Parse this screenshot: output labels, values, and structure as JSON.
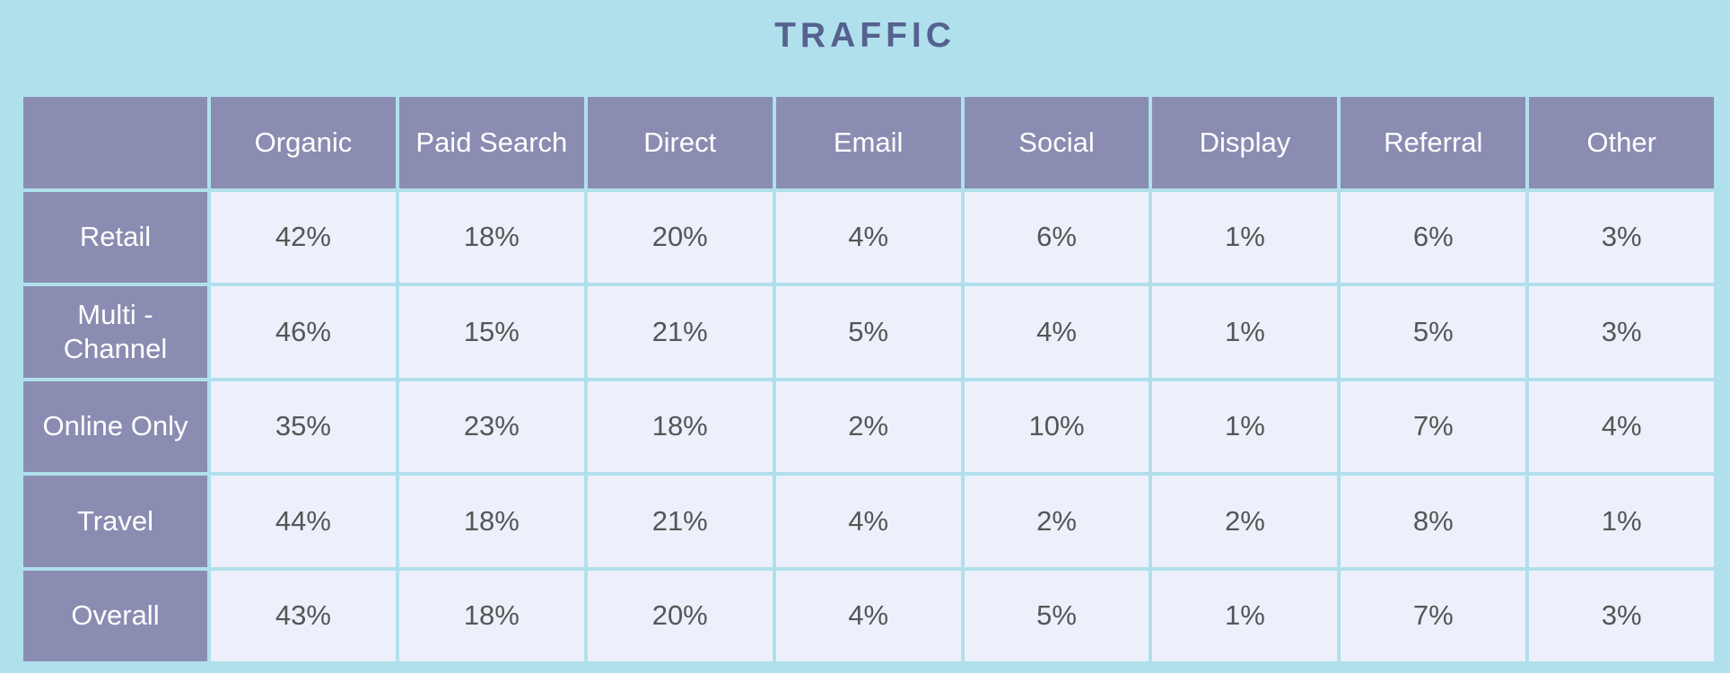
{
  "chart_data": {
    "type": "table",
    "title": "TRAFFIC",
    "columns": [
      "Organic",
      "Paid Search",
      "Direct",
      "Email",
      "Social",
      "Display",
      "Referral",
      "Other"
    ],
    "rows": [
      {
        "label": "Retail",
        "values": [
          "42%",
          "18%",
          "20%",
          "4%",
          "6%",
          "1%",
          "6%",
          "3%"
        ]
      },
      {
        "label": "Multi - Channel",
        "values": [
          "46%",
          "15%",
          "21%",
          "5%",
          "4%",
          "1%",
          "5%",
          "3%"
        ]
      },
      {
        "label": "Online Only",
        "values": [
          "35%",
          "23%",
          "18%",
          "2%",
          "10%",
          "1%",
          "7%",
          "4%"
        ]
      },
      {
        "label": "Travel",
        "values": [
          "44%",
          "18%",
          "21%",
          "4%",
          "2%",
          "2%",
          "8%",
          "1%"
        ]
      },
      {
        "label": "Overall",
        "values": [
          "43%",
          "18%",
          "20%",
          "4%",
          "5%",
          "1%",
          "7%",
          "3%"
        ]
      }
    ],
    "colors": {
      "background": "#b0e0ec",
      "header": "#8a8db1",
      "cell": "#edf0fa",
      "title": "#55618f",
      "value_text": "#555555"
    }
  }
}
